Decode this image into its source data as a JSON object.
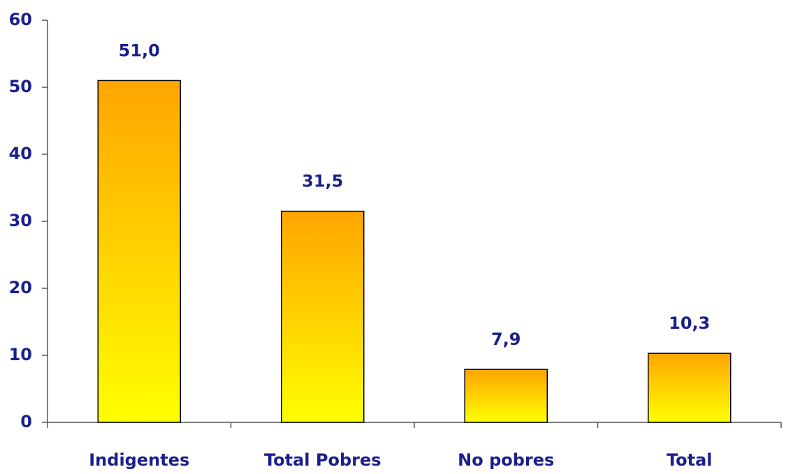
{
  "chart_data": {
    "type": "bar",
    "categories": [
      "Indigentes",
      "Total Pobres",
      "No pobres",
      "Total"
    ],
    "values": [
      51.0,
      31.5,
      7.9,
      10.3
    ],
    "value_labels": [
      "51,0",
      "31,5",
      "7,9",
      "10,3"
    ],
    "gradient": [
      "#FFA500",
      "#FFFF00"
    ],
    "ylim": [
      0,
      60
    ],
    "yticks": [
      0,
      10,
      20,
      30,
      40,
      50,
      60
    ],
    "grid": false
  }
}
